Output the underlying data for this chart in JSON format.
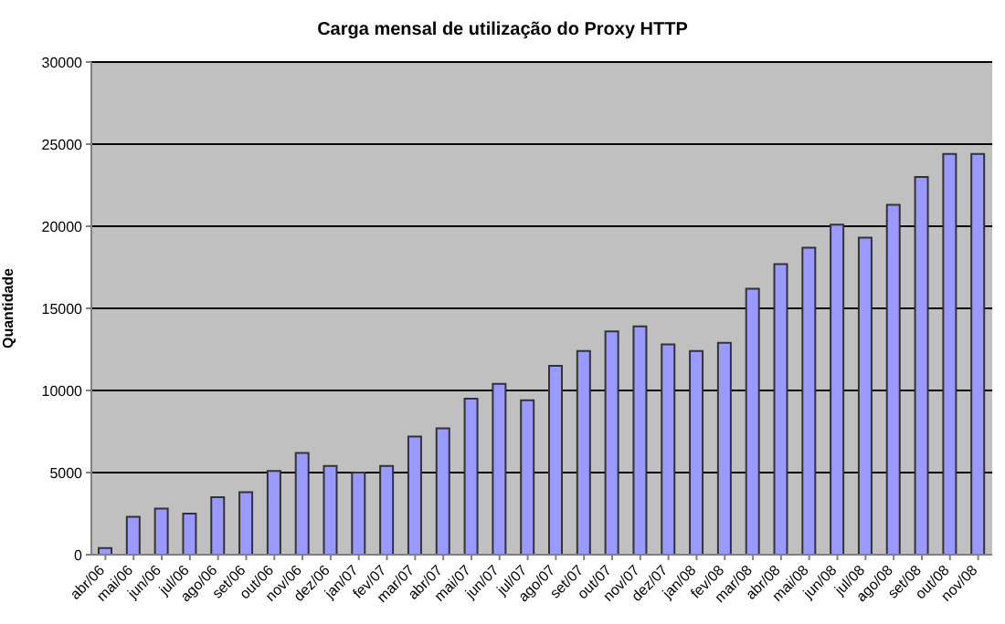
{
  "chart_data": {
    "type": "bar",
    "title": "Carga mensal de utilização do Proxy HTTP",
    "ylabel": "Quantidade",
    "categories": [
      "abr/06",
      "mai/06",
      "jun/06",
      "jul/06",
      "ago/06",
      "set/06",
      "out/06",
      "nov/06",
      "dez/06",
      "jan/07",
      "fev/07",
      "mar/07",
      "abr/07",
      "mai/07",
      "jun/07",
      "jul/07",
      "ago/07",
      "set/07",
      "out/07",
      "nov/07",
      "dez/07",
      "jan/08",
      "fev/08",
      "mar/08",
      "abr/08",
      "mai/08",
      "jun/08",
      "jul/08",
      "ago/08",
      "set/08",
      "out/08",
      "nov/08"
    ],
    "values": [
      400,
      2300,
      2800,
      2500,
      3500,
      3800,
      5100,
      6200,
      5400,
      5000,
      5400,
      7200,
      7700,
      9500,
      10400,
      9400,
      11500,
      12400,
      13600,
      13900,
      12800,
      12400,
      12900,
      16200,
      17700,
      18700,
      20100,
      19300,
      21300,
      23000,
      24400,
      24400
    ],
    "color": "#9999ff",
    "ylim": [
      0,
      30000
    ],
    "yticks": [
      0,
      5000,
      10000,
      15000,
      20000,
      25000,
      30000
    ],
    "grid": "y",
    "legend": false
  }
}
